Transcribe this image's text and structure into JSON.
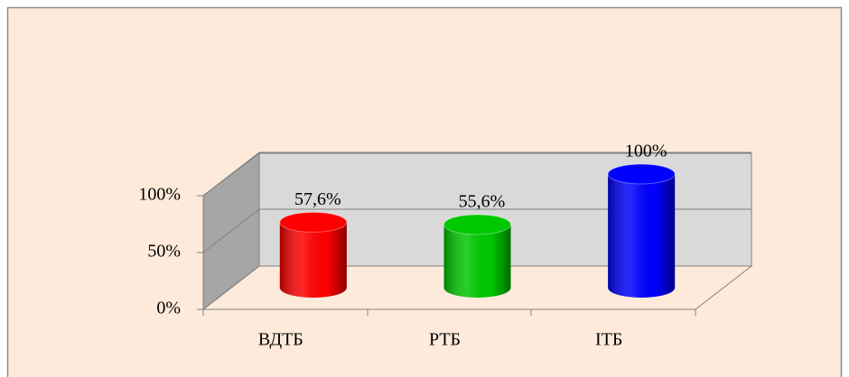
{
  "chart_data": {
    "type": "cylinder",
    "categories": [
      "ВДТБ",
      "РТБ",
      "ІТБ"
    ],
    "values": [
      57.6,
      55.6,
      100
    ],
    "value_labels": [
      "57,6%",
      "55,6%",
      "100%"
    ],
    "colors": [
      "#ff0000",
      "#00c800",
      "#0000ff"
    ],
    "ylim": [
      0,
      100
    ],
    "yticks": [
      {
        "value": 0,
        "label": "0%"
      },
      {
        "value": 50,
        "label": "50%"
      },
      {
        "value": 100,
        "label": "100%"
      }
    ],
    "grid": true
  }
}
